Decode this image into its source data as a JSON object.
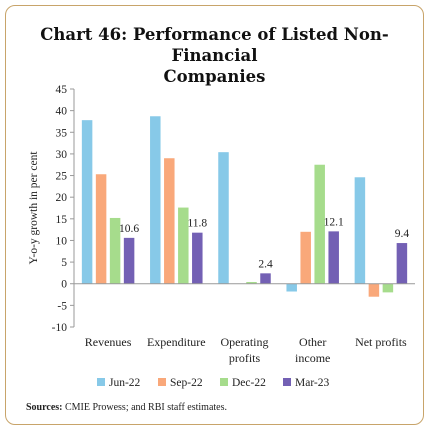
{
  "chart_data": {
    "type": "bar",
    "title_line1": "Chart 46: Performance of Listed Non-Financial",
    "title_line2": "Companies",
    "ylabel": "Y-o-y growth in per cent",
    "ylim": [
      -10,
      45
    ],
    "yticks": [
      -10,
      -5,
      0,
      5,
      10,
      15,
      20,
      25,
      30,
      35,
      40,
      45
    ],
    "categories": [
      [
        "Revenues"
      ],
      [
        "Expenditure"
      ],
      [
        "Operating",
        "profits"
      ],
      [
        "Other",
        "income"
      ],
      [
        "Net profits"
      ]
    ],
    "series": [
      {
        "name": "Jun-22",
        "color": "#87c9e8",
        "values": [
          37.8,
          38.7,
          30.4,
          -1.8,
          24.6
        ]
      },
      {
        "name": "Sep-22",
        "color": "#f9a87a",
        "values": [
          25.3,
          29.0,
          0,
          12.0,
          -3.0
        ]
      },
      {
        "name": "Dec-22",
        "color": "#a6dc8c",
        "values": [
          15.2,
          17.6,
          0.4,
          27.5,
          -2.0
        ]
      },
      {
        "name": "Mar-23",
        "color": "#7360b4",
        "values": [
          10.6,
          11.8,
          2.4,
          12.1,
          9.4
        ]
      }
    ],
    "data_labels": [
      "10.6",
      "11.8",
      "2.4",
      "12.1",
      "9.4"
    ],
    "legend_position": "bottom",
    "grid": false
  },
  "source_label": "Sources:",
  "source_text": " CMIE Prowess; and RBI staff estimates."
}
